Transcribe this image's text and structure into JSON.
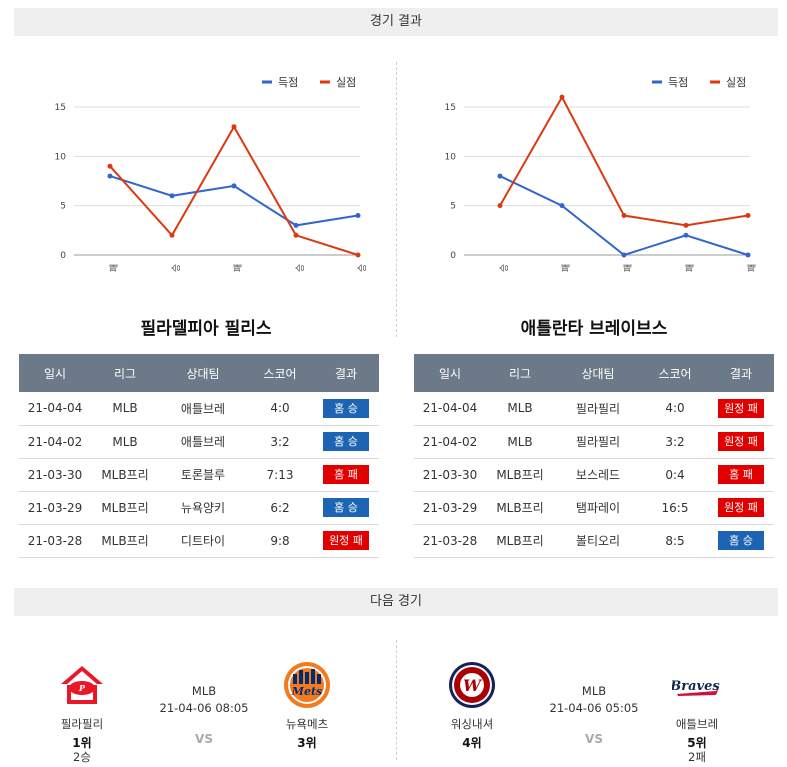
{
  "sections": {
    "results_title": "경기 결과",
    "next_title": "다음 경기"
  },
  "legend": {
    "scored": "득점",
    "conceded": "실점"
  },
  "colors": {
    "scored": "#3366cc",
    "conceded": "#dc3912",
    "win": "#1e64b4",
    "loss": "#e00000",
    "header": "#6b7989"
  },
  "chart_data": [
    {
      "type": "line",
      "categories": [
        "패",
        "승",
        "패",
        "승",
        "승"
      ],
      "ylim": [
        0,
        15
      ],
      "yticks": [
        0,
        5,
        10,
        15
      ],
      "legend": "top-right",
      "grid": true,
      "series": [
        {
          "name": "득점",
          "values": [
            8,
            6,
            7,
            3,
            4
          ]
        },
        {
          "name": "실점",
          "values": [
            9,
            2,
            13,
            2,
            0
          ]
        }
      ]
    },
    {
      "type": "line",
      "categories": [
        "승",
        "패",
        "패",
        "패",
        "패"
      ],
      "ylim": [
        0,
        15
      ],
      "yticks": [
        0,
        5,
        10,
        15
      ],
      "legend": "top-right",
      "grid": true,
      "series": [
        {
          "name": "득점",
          "values": [
            8,
            5,
            0,
            2,
            0
          ]
        },
        {
          "name": "실점",
          "values": [
            5,
            16,
            4,
            3,
            4
          ]
        }
      ]
    }
  ],
  "teams": {
    "left": {
      "name": "필라델피아 필리스",
      "headers": [
        "일시",
        "리그",
        "상대팀",
        "스코어",
        "결과"
      ],
      "rows": [
        {
          "date": "21-04-04",
          "league": "MLB",
          "opponent": "애틀브레",
          "score": "4:0",
          "result": "홈 승",
          "win": true
        },
        {
          "date": "21-04-02",
          "league": "MLB",
          "opponent": "애틀브레",
          "score": "3:2",
          "result": "홈 승",
          "win": true
        },
        {
          "date": "21-03-30",
          "league": "MLB프리",
          "opponent": "토론블루",
          "score": "7:13",
          "result": "홈 패",
          "win": false
        },
        {
          "date": "21-03-29",
          "league": "MLB프리",
          "opponent": "뉴욕양키",
          "score": "6:2",
          "result": "홈 승",
          "win": true
        },
        {
          "date": "21-03-28",
          "league": "MLB프리",
          "opponent": "디트타이",
          "score": "9:8",
          "result": "원정 패",
          "win": false
        }
      ]
    },
    "right": {
      "name": "애틀란타 브레이브스",
      "headers": [
        "일시",
        "리그",
        "상대팀",
        "스코어",
        "결과"
      ],
      "rows": [
        {
          "date": "21-04-04",
          "league": "MLB",
          "opponent": "필라필리",
          "score": "4:0",
          "result": "원정 패",
          "win": false
        },
        {
          "date": "21-04-02",
          "league": "MLB",
          "opponent": "필라필리",
          "score": "3:2",
          "result": "원정 패",
          "win": false
        },
        {
          "date": "21-03-30",
          "league": "MLB프리",
          "opponent": "보스레드",
          "score": "0:4",
          "result": "홈 패",
          "win": false
        },
        {
          "date": "21-03-29",
          "league": "MLB프리",
          "opponent": "탬파레이",
          "score": "16:5",
          "result": "원정 패",
          "win": false
        },
        {
          "date": "21-03-28",
          "league": "MLB프리",
          "opponent": "볼티오리",
          "score": "8:5",
          "result": "홈 승",
          "win": true
        }
      ]
    }
  },
  "next_games": {
    "left": {
      "league": "MLB",
      "datetime": "21-04-06 08:05",
      "vs": "VS",
      "home": {
        "name": "필라필리",
        "rank": "1위",
        "streak": "2승",
        "logo": "phillies-logo"
      },
      "away": {
        "name": "뉴욕메츠",
        "rank": "3위",
        "streak": "",
        "logo": "mets-logo"
      }
    },
    "right": {
      "league": "MLB",
      "datetime": "21-04-06 05:05",
      "vs": "VS",
      "home": {
        "name": "워싱내셔",
        "rank": "4위",
        "streak": "",
        "logo": "nationals-logo"
      },
      "away": {
        "name": "애틀브레",
        "rank": "5위",
        "streak": "2패",
        "logo": "braves-logo"
      }
    }
  }
}
